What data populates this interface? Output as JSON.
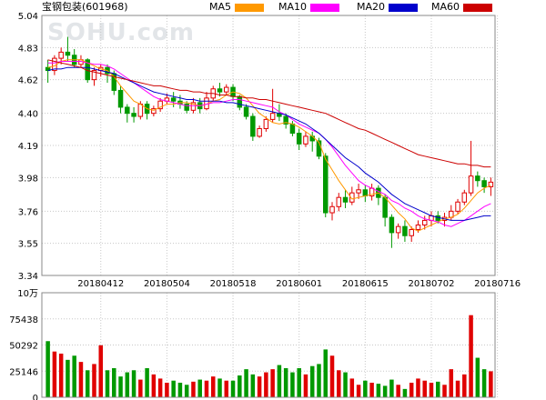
{
  "stock": {
    "name": "宝钢包装",
    "code": "(601968)"
  },
  "watermark": "SOHU.com",
  "legend": [
    {
      "key": "ma5",
      "label": "MA5",
      "color": "#ff9900"
    },
    {
      "key": "ma10",
      "label": "MA10",
      "color": "#ff00ff"
    },
    {
      "key": "ma20",
      "label": "MA20",
      "color": "#0000cc"
    },
    {
      "key": "ma60",
      "label": "MA60",
      "color": "#cc0000"
    }
  ],
  "colors": {
    "up": "#e00000",
    "down": "#009900",
    "grid": "#c8c8c8",
    "frame": "#888888"
  },
  "chart_data": {
    "type": "candlestick",
    "price_axis": {
      "ticks": [
        "5.04",
        "4.83",
        "4.62",
        "4.40",
        "4.19",
        "3.98",
        "3.76",
        "3.55",
        "3.34"
      ],
      "range": [
        3.34,
        5.04
      ]
    },
    "volume_axis": {
      "unit": "10万",
      "ticks": [
        "75438",
        "50292",
        "25146",
        "0"
      ],
      "range": [
        0,
        100584
      ]
    },
    "dates": [
      "20180412",
      "20180504",
      "20180518",
      "20180601",
      "20180615",
      "20180702",
      "20180716"
    ],
    "date_index": [
      8,
      18,
      28,
      38,
      48,
      58,
      68
    ],
    "candles": [
      [
        4.7,
        4.68,
        4.75,
        4.6
      ],
      [
        4.68,
        4.76,
        4.78,
        4.65
      ],
      [
        4.76,
        4.8,
        4.83,
        4.72
      ],
      [
        4.8,
        4.78,
        4.9,
        4.74
      ],
      [
        4.78,
        4.72,
        4.82,
        4.7
      ],
      [
        4.72,
        4.75,
        4.78,
        4.7
      ],
      [
        4.75,
        4.62,
        4.76,
        4.6
      ],
      [
        4.62,
        4.68,
        4.7,
        4.58
      ],
      [
        4.68,
        4.7,
        4.72,
        4.64
      ],
      [
        4.7,
        4.66,
        4.72,
        4.6
      ],
      [
        4.66,
        4.55,
        4.68,
        4.52
      ],
      [
        4.55,
        4.44,
        4.58,
        4.4
      ],
      [
        4.44,
        4.4,
        4.46,
        4.34
      ],
      [
        4.4,
        4.38,
        4.44,
        4.34
      ],
      [
        4.38,
        4.46,
        4.48,
        4.36
      ],
      [
        4.46,
        4.4,
        4.48,
        4.36
      ],
      [
        4.4,
        4.43,
        4.45,
        4.38
      ],
      [
        4.43,
        4.48,
        4.5,
        4.41
      ],
      [
        4.48,
        4.5,
        4.53,
        4.46
      ],
      [
        4.5,
        4.48,
        4.54,
        4.44
      ],
      [
        4.48,
        4.46,
        4.52,
        4.43
      ],
      [
        4.46,
        4.42,
        4.48,
        4.4
      ],
      [
        4.42,
        4.47,
        4.5,
        4.4
      ],
      [
        4.47,
        4.43,
        4.5,
        4.4
      ],
      [
        4.43,
        4.5,
        4.54,
        4.42
      ],
      [
        4.5,
        4.56,
        4.58,
        4.48
      ],
      [
        4.56,
        4.54,
        4.6,
        4.51
      ],
      [
        4.54,
        4.57,
        4.59,
        4.52
      ],
      [
        4.57,
        4.51,
        4.59,
        4.48
      ],
      [
        4.51,
        4.44,
        4.52,
        4.42
      ],
      [
        4.44,
        4.38,
        4.46,
        4.36
      ],
      [
        4.38,
        4.25,
        4.4,
        4.22
      ],
      [
        4.25,
        4.3,
        4.32,
        4.24
      ],
      [
        4.3,
        4.36,
        4.38,
        4.28
      ],
      [
        4.36,
        4.4,
        4.56,
        4.34
      ],
      [
        4.4,
        4.38,
        4.46,
        4.35
      ],
      [
        4.38,
        4.33,
        4.4,
        4.3
      ],
      [
        4.33,
        4.27,
        4.35,
        4.25
      ],
      [
        4.27,
        4.2,
        4.3,
        4.16
      ],
      [
        4.2,
        4.25,
        4.28,
        4.18
      ],
      [
        4.25,
        4.22,
        4.28,
        4.15
      ],
      [
        4.22,
        4.12,
        4.24,
        4.1
      ],
      [
        4.12,
        3.75,
        4.14,
        3.72
      ],
      [
        3.75,
        3.79,
        3.82,
        3.7
      ],
      [
        3.79,
        3.85,
        3.88,
        3.76
      ],
      [
        3.85,
        3.82,
        3.9,
        3.78
      ],
      [
        3.82,
        3.88,
        3.92,
        3.8
      ],
      [
        3.88,
        3.9,
        3.94,
        3.84
      ],
      [
        3.9,
        3.86,
        3.93,
        3.82
      ],
      [
        3.86,
        3.91,
        3.94,
        3.83
      ],
      [
        3.91,
        3.85,
        3.93,
        3.8
      ],
      [
        3.85,
        3.72,
        3.87,
        3.66
      ],
      [
        3.72,
        3.62,
        3.74,
        3.52
      ],
      [
        3.62,
        3.66,
        3.68,
        3.58
      ],
      [
        3.66,
        3.6,
        3.7,
        3.56
      ],
      [
        3.6,
        3.64,
        3.66,
        3.56
      ],
      [
        3.64,
        3.67,
        3.7,
        3.62
      ],
      [
        3.67,
        3.7,
        3.73,
        3.64
      ],
      [
        3.7,
        3.73,
        3.76,
        3.66
      ],
      [
        3.73,
        3.7,
        3.76,
        3.68
      ],
      [
        3.7,
        3.72,
        3.75,
        3.66
      ],
      [
        3.72,
        3.76,
        3.8,
        3.7
      ],
      [
        3.76,
        3.82,
        3.84,
        3.74
      ],
      [
        3.82,
        3.88,
        3.9,
        3.8
      ],
      [
        3.88,
        3.99,
        4.22,
        3.86
      ],
      [
        3.99,
        3.96,
        4.02,
        3.92
      ],
      [
        3.96,
        3.92,
        3.98,
        3.88
      ],
      [
        3.92,
        3.95,
        3.98,
        3.86
      ]
    ],
    "volumes": [
      54000,
      44000,
      42000,
      36000,
      40000,
      34000,
      26000,
      32000,
      50000,
      26000,
      28000,
      20000,
      24000,
      26000,
      17000,
      28000,
      22000,
      18000,
      14000,
      16000,
      14000,
      12000,
      15000,
      17000,
      16000,
      20000,
      18000,
      16000,
      16000,
      21000,
      27000,
      22000,
      20000,
      24000,
      27000,
      31000,
      28000,
      24000,
      28000,
      22000,
      30000,
      32000,
      46000,
      40000,
      26000,
      24000,
      18000,
      12000,
      16000,
      14000,
      13000,
      11000,
      17000,
      12000,
      8000,
      14000,
      18000,
      16000,
      14000,
      15000,
      12000,
      27000,
      16000,
      22000,
      79000,
      38000,
      27000,
      25000
    ],
    "ma5": [
      4.7,
      4.71,
      4.74,
      4.75,
      4.75,
      4.75,
      4.73,
      4.71,
      4.69,
      4.68,
      4.64,
      4.58,
      4.53,
      4.48,
      4.46,
      4.43,
      4.42,
      4.44,
      4.46,
      4.46,
      4.47,
      4.47,
      4.46,
      4.45,
      4.46,
      4.48,
      4.49,
      4.52,
      4.54,
      4.53,
      4.5,
      4.45,
      4.4,
      4.37,
      4.34,
      4.33,
      4.34,
      4.33,
      4.31,
      4.28,
      4.25,
      4.21,
      4.1,
      4.03,
      3.96,
      3.9,
      3.84,
      3.85,
      3.86,
      3.87,
      3.88,
      3.85,
      3.8,
      3.75,
      3.71,
      3.65,
      3.63,
      3.65,
      3.67,
      3.69,
      3.71,
      3.72,
      3.74,
      3.78,
      3.83,
      3.88,
      3.91,
      3.93
    ],
    "ma10": [
      4.73,
      4.73,
      4.74,
      4.74,
      4.74,
      4.74,
      4.73,
      4.72,
      4.72,
      4.71,
      4.69,
      4.66,
      4.63,
      4.6,
      4.57,
      4.54,
      4.51,
      4.49,
      4.48,
      4.47,
      4.46,
      4.45,
      4.45,
      4.45,
      4.46,
      4.47,
      4.47,
      4.48,
      4.49,
      4.49,
      4.48,
      4.47,
      4.46,
      4.45,
      4.44,
      4.41,
      4.39,
      4.36,
      4.33,
      4.31,
      4.29,
      4.27,
      4.23,
      4.18,
      4.12,
      4.06,
      4.01,
      3.96,
      3.93,
      3.91,
      3.89,
      3.87,
      3.83,
      3.81,
      3.78,
      3.76,
      3.73,
      3.71,
      3.7,
      3.69,
      3.67,
      3.66,
      3.68,
      3.7,
      3.73,
      3.76,
      3.79,
      3.81
    ],
    "ma20": [
      4.68,
      4.69,
      4.69,
      4.7,
      4.7,
      4.7,
      4.7,
      4.69,
      4.68,
      4.67,
      4.66,
      4.64,
      4.62,
      4.6,
      4.58,
      4.56,
      4.54,
      4.53,
      4.52,
      4.51,
      4.5,
      4.49,
      4.49,
      4.48,
      4.48,
      4.48,
      4.48,
      4.47,
      4.47,
      4.46,
      4.45,
      4.44,
      4.43,
      4.42,
      4.41,
      4.4,
      4.39,
      4.37,
      4.35,
      4.33,
      4.3,
      4.27,
      4.23,
      4.19,
      4.15,
      4.11,
      4.08,
      4.05,
      4.01,
      3.98,
      3.95,
      3.91,
      3.87,
      3.84,
      3.81,
      3.79,
      3.77,
      3.75,
      3.73,
      3.72,
      3.71,
      3.7,
      3.7,
      3.7,
      3.71,
      3.72,
      3.73,
      3.73
    ],
    "ma60": [
      4.75,
      4.74,
      4.73,
      4.72,
      4.71,
      4.7,
      4.68,
      4.67,
      4.66,
      4.65,
      4.64,
      4.63,
      4.62,
      4.61,
      4.6,
      4.59,
      4.58,
      4.58,
      4.57,
      4.56,
      4.55,
      4.55,
      4.54,
      4.54,
      4.53,
      4.53,
      4.52,
      4.52,
      4.51,
      4.51,
      4.5,
      4.5,
      4.49,
      4.49,
      4.48,
      4.47,
      4.46,
      4.45,
      4.44,
      4.43,
      4.42,
      4.41,
      4.4,
      4.38,
      4.36,
      4.34,
      4.32,
      4.3,
      4.29,
      4.27,
      4.25,
      4.23,
      4.21,
      4.19,
      4.17,
      4.15,
      4.13,
      4.12,
      4.11,
      4.1,
      4.09,
      4.08,
      4.07,
      4.07,
      4.06,
      4.06,
      4.05,
      4.05
    ]
  }
}
